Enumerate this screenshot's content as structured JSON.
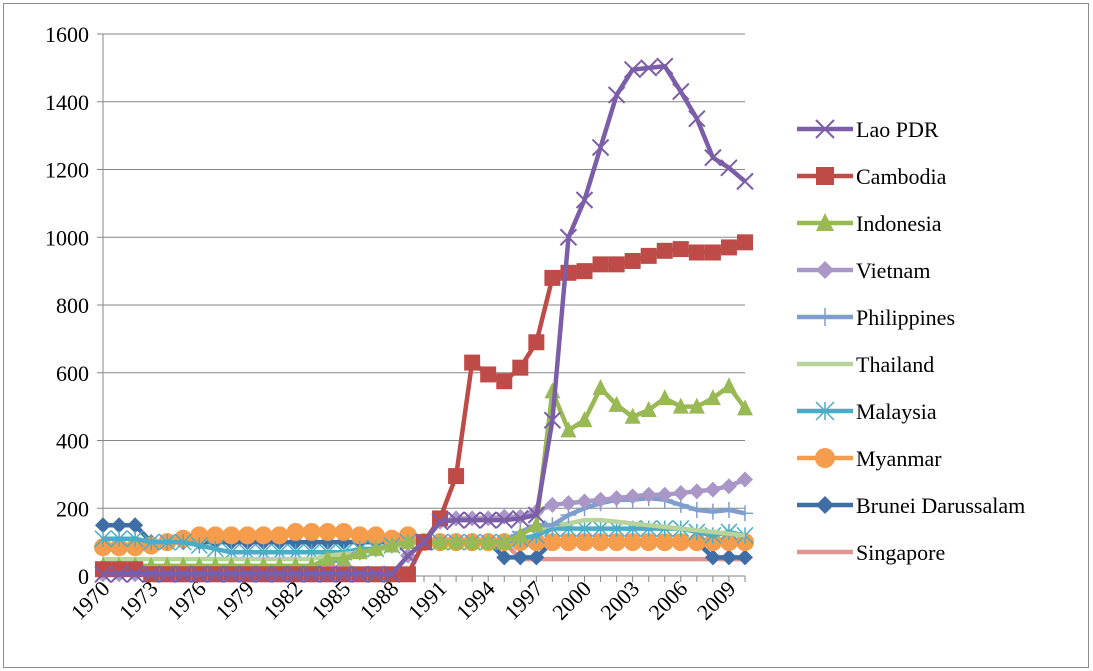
{
  "chart_data": {
    "type": "line",
    "title": "",
    "xlabel": "",
    "ylabel": "",
    "ylim": [
      0,
      1600
    ],
    "y_ticks": [
      0,
      200,
      400,
      600,
      800,
      1000,
      1200,
      1400,
      1600
    ],
    "x": [
      1970,
      1971,
      1972,
      1973,
      1974,
      1975,
      1976,
      1977,
      1978,
      1979,
      1980,
      1981,
      1982,
      1983,
      1984,
      1985,
      1986,
      1987,
      1988,
      1989,
      1990,
      1991,
      1992,
      1993,
      1994,
      1995,
      1996,
      1997,
      1998,
      1999,
      2000,
      2001,
      2002,
      2003,
      2004,
      2005,
      2006,
      2007,
      2008,
      2009,
      2010
    ],
    "x_tick_labels": [
      "1970",
      "1973",
      "1976",
      "1979",
      "1982",
      "1985",
      "1988",
      "1991",
      "1994",
      "1997",
      "2000",
      "2003",
      "2006",
      "2009"
    ],
    "grid": "horizontal",
    "legend_position": "right",
    "series": [
      {
        "name": "Lao PDR",
        "color": "#7b5ea7",
        "marker": "x",
        "values": [
          5,
          5,
          5,
          5,
          5,
          5,
          5,
          5,
          5,
          5,
          5,
          5,
          5,
          5,
          5,
          5,
          5,
          5,
          5,
          60,
          100,
          160,
          165,
          165,
          165,
          165,
          170,
          180,
          460,
          1000,
          1110,
          1265,
          1420,
          1495,
          1500,
          1505,
          1430,
          1350,
          1235,
          1205,
          1165
        ]
      },
      {
        "name": "Cambodia",
        "color": "#be4b48",
        "marker": "square",
        "values": [
          20,
          20,
          20,
          5,
          5,
          5,
          5,
          5,
          5,
          5,
          5,
          5,
          5,
          5,
          5,
          5,
          5,
          5,
          5,
          5,
          100,
          170,
          295,
          630,
          595,
          575,
          615,
          690,
          880,
          895,
          900,
          920,
          920,
          930,
          945,
          960,
          965,
          955,
          955,
          970,
          985
        ]
      },
      {
        "name": "Indonesia",
        "color": "#98b954",
        "marker": "triangle",
        "values": [
          30,
          30,
          30,
          30,
          30,
          30,
          30,
          30,
          30,
          30,
          30,
          30,
          30,
          30,
          50,
          50,
          70,
          80,
          90,
          100,
          100,
          100,
          100,
          100,
          100,
          100,
          120,
          150,
          545,
          430,
          460,
          555,
          505,
          470,
          490,
          525,
          500,
          500,
          525,
          560,
          495
        ]
      },
      {
        "name": "Vietnam",
        "color": "#a997c7",
        "marker": "diamond",
        "values": [
          5,
          5,
          5,
          5,
          5,
          5,
          5,
          5,
          5,
          5,
          5,
          5,
          5,
          5,
          5,
          5,
          5,
          5,
          5,
          60,
          100,
          160,
          170,
          170,
          170,
          175,
          175,
          190,
          210,
          215,
          220,
          225,
          230,
          235,
          240,
          240,
          245,
          250,
          255,
          265,
          285
        ]
      },
      {
        "name": "Philippines",
        "color": "#7f9fcb",
        "marker": "plus",
        "values": [
          30,
          30,
          30,
          30,
          30,
          30,
          30,
          30,
          30,
          30,
          30,
          30,
          30,
          30,
          40,
          50,
          70,
          80,
          90,
          100,
          100,
          100,
          100,
          100,
          100,
          100,
          130,
          150,
          150,
          180,
          200,
          215,
          225,
          225,
          230,
          225,
          210,
          195,
          190,
          195,
          185
        ]
      },
      {
        "name": "Thailand",
        "color": "#b8d49a",
        "marker": "none",
        "values": [
          50,
          50,
          50,
          50,
          50,
          50,
          50,
          50,
          50,
          50,
          50,
          50,
          50,
          50,
          60,
          65,
          70,
          75,
          85,
          95,
          100,
          100,
          100,
          100,
          100,
          100,
          130,
          140,
          150,
          155,
          165,
          165,
          160,
          155,
          150,
          145,
          140,
          135,
          130,
          125,
          120
        ]
      },
      {
        "name": "Malaysia",
        "color": "#4aacc5",
        "marker": "asterisk",
        "values": [
          110,
          110,
          110,
          100,
          100,
          100,
          90,
          80,
          70,
          70,
          70,
          70,
          70,
          70,
          70,
          70,
          80,
          80,
          90,
          100,
          100,
          100,
          100,
          100,
          100,
          100,
          110,
          120,
          140,
          140,
          140,
          140,
          140,
          140,
          140,
          140,
          140,
          130,
          120,
          130,
          120
        ]
      },
      {
        "name": "Myanmar",
        "color": "#f59c4d",
        "marker": "circle",
        "values": [
          85,
          85,
          85,
          90,
          100,
          110,
          120,
          120,
          120,
          120,
          120,
          120,
          130,
          130,
          130,
          130,
          120,
          120,
          110,
          120,
          100,
          100,
          100,
          100,
          100,
          100,
          100,
          100,
          100,
          100,
          100,
          100,
          100,
          100,
          100,
          100,
          100,
          100,
          100,
          100,
          100
        ]
      },
      {
        "name": "Brunei Darussalam",
        "color": "#3f6ea6",
        "marker": "diamond",
        "values": [
          150,
          150,
          150,
          100,
          100,
          100,
          100,
          100,
          100,
          100,
          100,
          100,
          100,
          100,
          100,
          100,
          100,
          100,
          100,
          100,
          100,
          100,
          100,
          100,
          100,
          55,
          55,
          55,
          100,
          100,
          100,
          100,
          100,
          100,
          100,
          100,
          100,
          100,
          55,
          55,
          55
        ]
      },
      {
        "name": "Singapore",
        "color": "#de9593",
        "marker": "none",
        "values": [
          150,
          150,
          150,
          100,
          100,
          100,
          100,
          100,
          100,
          100,
          100,
          100,
          100,
          100,
          100,
          100,
          100,
          100,
          100,
          100,
          100,
          100,
          100,
          100,
          100,
          100,
          50,
          50,
          50,
          50,
          50,
          50,
          50,
          50,
          50,
          50,
          50,
          50,
          50,
          50,
          50
        ]
      }
    ]
  }
}
